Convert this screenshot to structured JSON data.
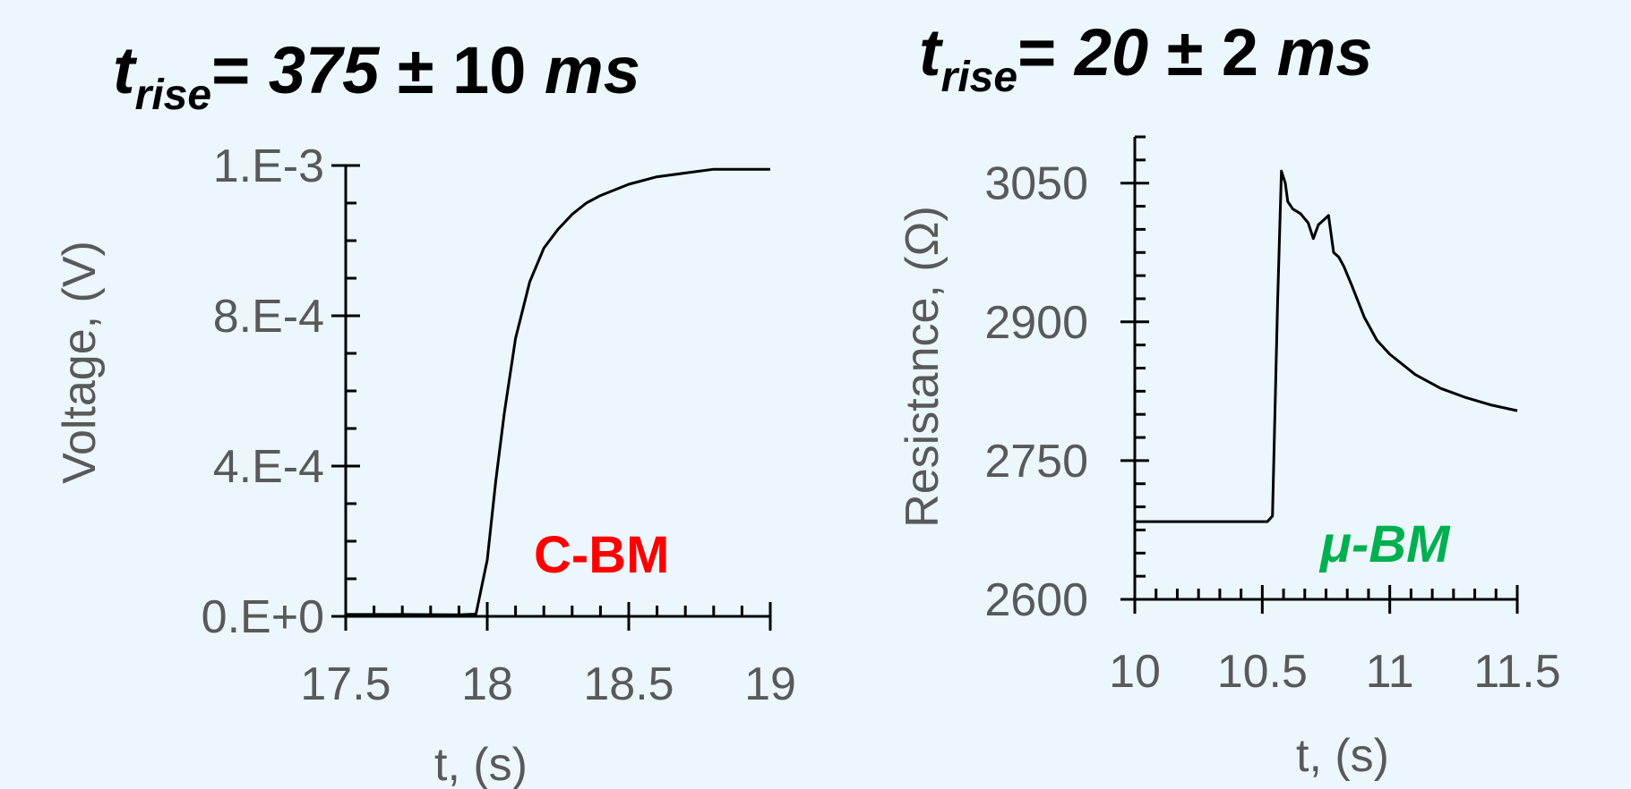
{
  "colors": {
    "background": "#EBF6FD",
    "text_gray": "#595959",
    "line": "#000000",
    "cbm_red": "#FF0000",
    "ubm_green": "#00B050"
  },
  "chart_data": [
    {
      "type": "line",
      "title": {
        "prefix": "t",
        "sub": "rise",
        "eq": "= ",
        "value": "375",
        "rest": " ± 10 ",
        "unit": "ms"
      },
      "xlabel": "t, (s)",
      "ylabel": "Voltage, (V)",
      "xlim": [
        17.5,
        19
      ],
      "ylim": [
        0,
        0.0012
      ],
      "x_ticks": [
        17.5,
        18,
        18.5,
        19
      ],
      "x_tick_labels": [
        "17.5",
        "18",
        "18.5",
        "19"
      ],
      "y_ticks": [
        0,
        0.0004,
        0.0008,
        0.0012
      ],
      "y_tick_labels": [
        "0.E+0",
        "4.E-4",
        "8.E-4",
        "1.E-3"
      ],
      "annotation": "C-BM",
      "series": [
        {
          "x": [
            17.5,
            17.7,
            17.9,
            17.96,
            18.0,
            18.03,
            18.06,
            18.1,
            18.15,
            18.2,
            18.25,
            18.3,
            18.35,
            18.4,
            18.5,
            18.6,
            18.7,
            18.8,
            18.9,
            19.0
          ],
          "y": [
            5e-06,
            5e-06,
            4e-06,
            6e-06,
            0.00015,
            0.00036,
            0.00054,
            0.00074,
            0.00089,
            0.00098,
            0.00103,
            0.00107,
            0.0011,
            0.00112,
            0.00115,
            0.00117,
            0.00118,
            0.00119,
            0.00119,
            0.00119
          ]
        }
      ]
    },
    {
      "type": "line",
      "title": {
        "prefix": "t",
        "sub": "rise",
        "eq": "= ",
        "value": "20",
        "rest": " ± 2 ",
        "unit": "ms"
      },
      "xlabel": "t, (s)",
      "ylabel": "Resistance, (Ω)",
      "xlim": [
        10,
        11.5
      ],
      "ylim": [
        2600,
        3100
      ],
      "x_ticks": [
        10,
        10.5,
        11,
        11.5
      ],
      "x_tick_labels": [
        "10",
        "10.5",
        "11",
        "11.5"
      ],
      "y_ticks": [
        2600,
        2750,
        2900,
        3050
      ],
      "y_tick_labels": [
        "2600",
        "2750",
        "2900",
        "3050"
      ],
      "annotation": "μ-BM",
      "series": [
        {
          "x": [
            10.0,
            10.2,
            10.4,
            10.52,
            10.54,
            10.56,
            10.575,
            10.59,
            10.6,
            10.62,
            10.65,
            10.68,
            10.7,
            10.72,
            10.74,
            10.76,
            10.78,
            10.8,
            10.81,
            10.82,
            10.85,
            10.9,
            10.95,
            11.0,
            11.1,
            11.2,
            11.3,
            11.4,
            11.5
          ],
          "y": [
            2684,
            2684,
            2684,
            2684,
            2690,
            2920,
            3063,
            3050,
            3030,
            3022,
            3017,
            3007,
            2990,
            3005,
            3010,
            3015,
            2975,
            2970,
            2965,
            2960,
            2940,
            2905,
            2880,
            2865,
            2843,
            2828,
            2818,
            2810,
            2804
          ]
        }
      ]
    }
  ]
}
